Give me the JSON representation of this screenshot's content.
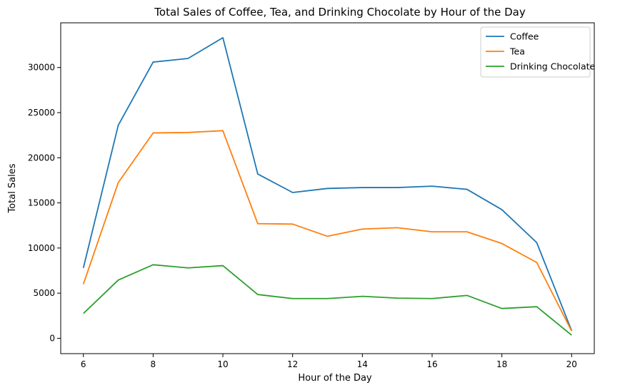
{
  "chart_data": {
    "type": "line",
    "title": "Total Sales of Coffee, Tea, and Drinking Chocolate by Hour of the Day",
    "xlabel": "Hour of the Day",
    "ylabel": "Total Sales",
    "x": [
      6,
      7,
      8,
      9,
      10,
      11,
      12,
      13,
      14,
      15,
      16,
      17,
      18,
      19,
      20
    ],
    "xticks": [
      6,
      8,
      10,
      12,
      14,
      16,
      18,
      20
    ],
    "yticks": [
      0,
      5000,
      10000,
      15000,
      20000,
      25000,
      30000
    ],
    "xlim": [
      5.35,
      20.65
    ],
    "ylim": [
      -1700,
      34950
    ],
    "grid": false,
    "legend_position": "top-right",
    "series": [
      {
        "name": "Coffee",
        "color": "#1f77b4",
        "values": [
          7800,
          23600,
          30600,
          31000,
          33300,
          18200,
          16150,
          16600,
          16700,
          16700,
          16850,
          16500,
          14250,
          10600,
          850
        ]
      },
      {
        "name": "Tea",
        "color": "#ff7f0e",
        "values": [
          6000,
          17250,
          22750,
          22800,
          23000,
          12700,
          12650,
          11300,
          12100,
          12250,
          11800,
          11800,
          10500,
          8400,
          800
        ]
      },
      {
        "name": "Drinking Chocolate",
        "color": "#2ca02c",
        "values": [
          2750,
          6450,
          8150,
          7800,
          8050,
          4850,
          4400,
          4400,
          4650,
          4450,
          4400,
          4750,
          3300,
          3500,
          350
        ]
      }
    ]
  }
}
